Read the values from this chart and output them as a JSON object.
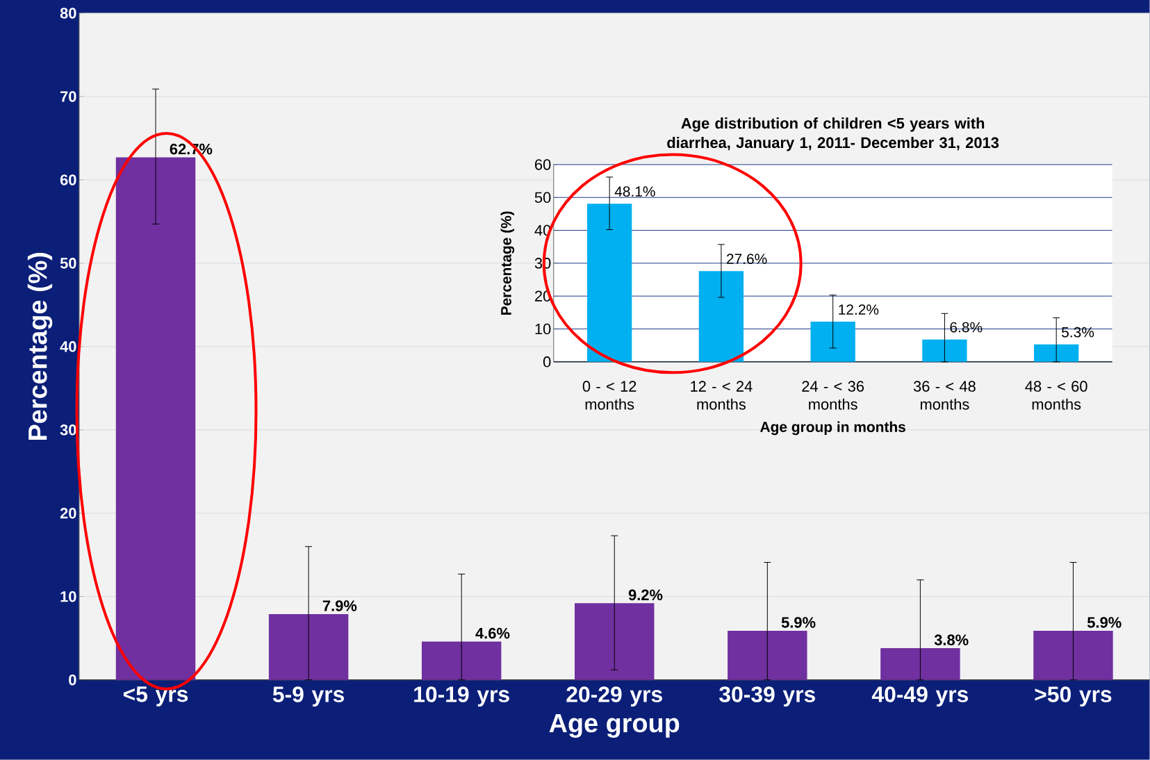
{
  "chart_data": [
    {
      "type": "bar",
      "xlabel": "Age group",
      "ylabel": "Percentage (%)",
      "categories": [
        "<5 yrs",
        "5-9 yrs",
        "10-19 yrs",
        "20-29 yrs",
        "30-39 yrs",
        "40-49 yrs",
        ">50 yrs"
      ],
      "values": [
        62.7,
        7.9,
        4.6,
        9.2,
        5.9,
        3.8,
        5.9
      ],
      "value_labels": [
        "62.7%",
        "7.9%",
        "4.6%",
        "9.2%",
        "5.9%",
        "3.8%",
        "5.9%"
      ],
      "errors": [
        [
          54.7,
          70.9
        ],
        [
          0,
          16.0
        ],
        [
          0,
          12.7
        ],
        [
          1.2,
          17.3
        ],
        [
          0,
          14.1
        ],
        [
          0,
          12.0
        ],
        [
          0,
          14.1
        ]
      ],
      "color": "#7030a0",
      "ylim": [
        0,
        80
      ],
      "yticks": [
        0,
        10,
        20,
        30,
        40,
        50,
        60,
        70,
        80
      ],
      "grid": "y"
    },
    {
      "type": "bar",
      "title": "Age distribution of children <5 years with diarrhea, January 1, 2011- December  31, 2013",
      "xlabel": "Age group in months",
      "ylabel": "Percentage (%)",
      "categories": [
        "0 - < 12 months",
        "12 - < 24 months",
        "24 - < 36 months",
        "36 - < 48 months",
        "48 - < 60 months"
      ],
      "values": [
        48.1,
        27.6,
        12.2,
        6.8,
        5.3
      ],
      "value_labels": [
        "48.1%",
        "27.6%",
        "12.2%",
        "6.8%",
        "5.3%"
      ],
      "errors": [
        [
          40.2,
          56.2
        ],
        [
          19.6,
          35.7
        ],
        [
          4.2,
          20.3
        ],
        [
          0,
          14.7
        ],
        [
          0,
          13.4
        ]
      ],
      "color": "#00b0f0",
      "ylim": [
        0,
        60
      ],
      "yticks": [
        0,
        10,
        20,
        30,
        40,
        50,
        60
      ],
      "grid": "y"
    }
  ]
}
